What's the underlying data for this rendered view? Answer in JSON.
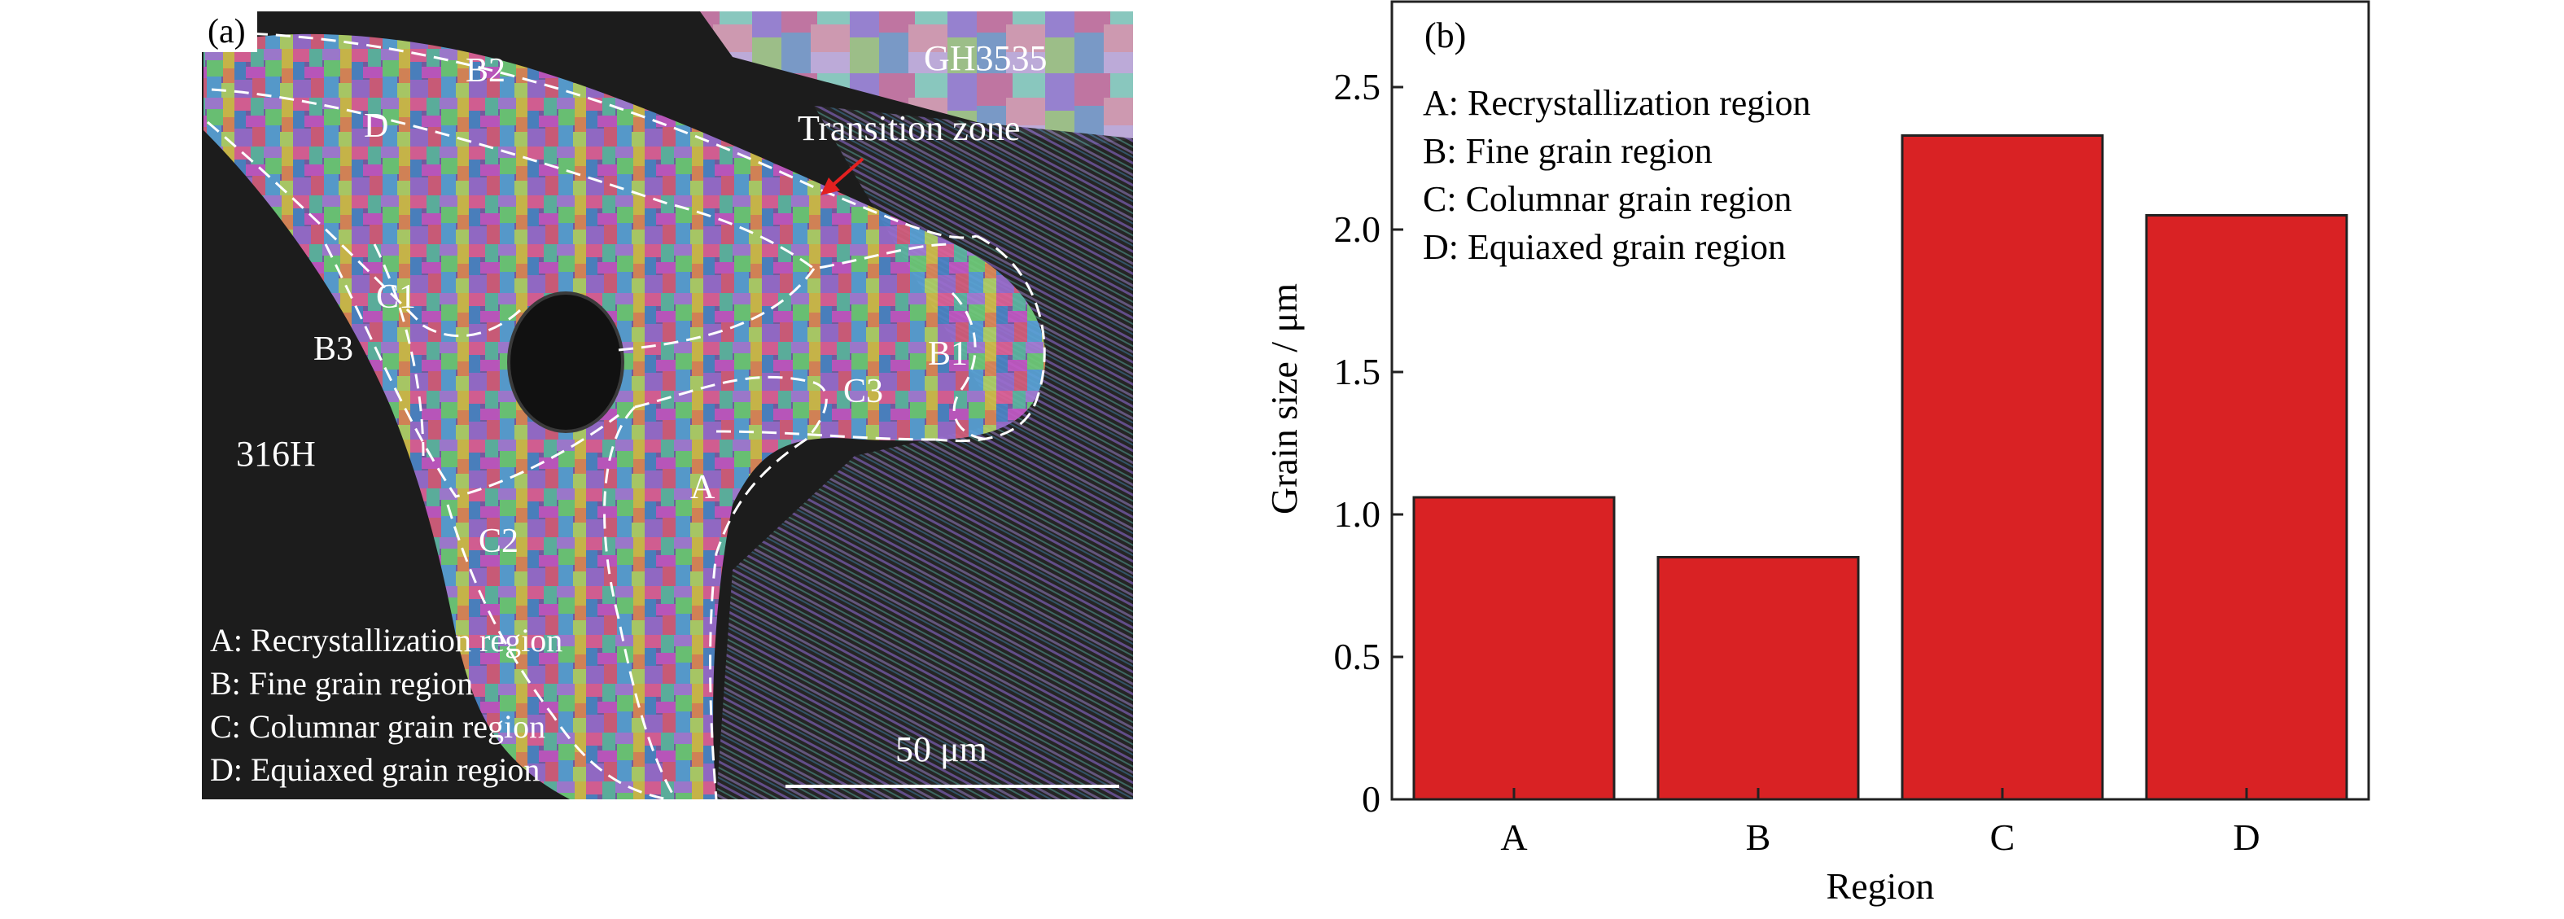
{
  "panel_a": {
    "label": "(a)",
    "materials": {
      "top": "GH3535",
      "left": "316H"
    },
    "transition_label": "Transition zone",
    "region_marks": [
      "B2",
      "D",
      "C1",
      "B3",
      "B1",
      "C3",
      "A",
      "C2"
    ],
    "legend": [
      "A: Recrystallization region",
      "B: Fine grain region",
      "C: Columnar grain region",
      "D: Equiaxed grain region"
    ],
    "scale_bar": "50 μm",
    "colors": {
      "background": "#1c1c1c",
      "annotation": "#ffffff",
      "arrow": "#e32020"
    }
  },
  "panel_b": {
    "label": "(b)",
    "legend": [
      "A: Recrystallization region",
      "B: Fine grain region",
      "C: Columnar grain region",
      "D: Equiaxed grain region"
    ]
  },
  "chart_data": {
    "type": "bar",
    "categories": [
      "A",
      "B",
      "C",
      "D"
    ],
    "values": [
      1.06,
      0.85,
      2.33,
      2.05
    ],
    "xlabel": "Region",
    "ylabel": "Grain size / μm",
    "ylim": [
      0,
      2.8
    ],
    "yticks": [
      0,
      0.5,
      1.0,
      1.5,
      2.0,
      2.5
    ],
    "ytick_labels": [
      "0",
      "0.5",
      "1.0",
      "1.5",
      "2.0",
      "2.5"
    ],
    "grid": false,
    "legend_placement": "top-left",
    "bar_color": "#d92224",
    "edge_color": "#222222"
  }
}
